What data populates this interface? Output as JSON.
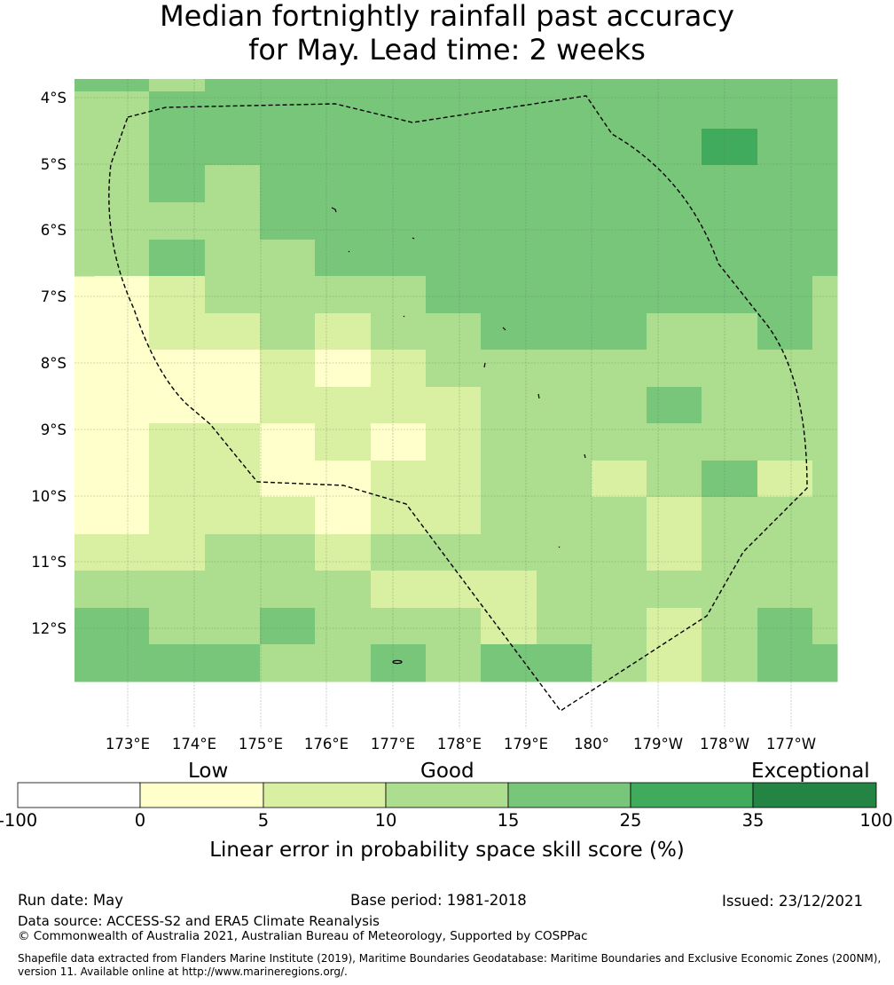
{
  "title": {
    "line1": "Median fortnightly rainfall past accuracy",
    "line2": "for May. Lead time: 2 weeks"
  },
  "map": {
    "lat_labels": [
      "4°S",
      "5°S",
      "6°S",
      "7°S",
      "8°S",
      "9°S",
      "10°S",
      "11°S",
      "12°S"
    ],
    "lon_labels": [
      "173°E",
      "174°E",
      "175°E",
      "176°E",
      "177°E",
      "178°E",
      "179°E",
      "180°",
      "179°W",
      "178°W",
      "177°W"
    ],
    "skill_grid": [
      [
        3,
        2,
        3,
        3,
        3,
        3,
        3,
        3,
        3,
        3,
        3,
        3,
        3,
        3
      ],
      [
        2,
        3,
        3,
        3,
        3,
        3,
        3,
        3,
        3,
        3,
        3,
        3,
        3,
        3
      ],
      [
        2,
        3,
        3,
        3,
        3,
        3,
        3,
        3,
        3,
        3,
        3,
        4,
        3,
        3
      ],
      [
        2,
        3,
        2,
        3,
        3,
        3,
        3,
        3,
        3,
        3,
        3,
        3,
        3,
        3
      ],
      [
        2,
        2,
        2,
        3,
        3,
        3,
        3,
        3,
        3,
        3,
        3,
        3,
        3,
        3
      ],
      [
        2,
        3,
        2,
        2,
        3,
        3,
        3,
        3,
        3,
        3,
        3,
        3,
        3,
        3
      ],
      [
        0,
        1,
        2,
        2,
        2,
        2,
        3,
        3,
        3,
        3,
        3,
        3,
        3,
        2
      ],
      [
        0,
        1,
        1,
        2,
        1,
        2,
        2,
        3,
        3,
        3,
        2,
        2,
        3,
        2
      ],
      [
        0,
        0,
        0,
        1,
        0,
        1,
        2,
        2,
        2,
        2,
        2,
        2,
        2,
        2
      ],
      [
        0,
        0,
        0,
        1,
        1,
        1,
        1,
        2,
        2,
        2,
        3,
        2,
        2,
        2
      ],
      [
        0,
        1,
        1,
        0,
        1,
        0,
        1,
        2,
        2,
        2,
        2,
        2,
        2,
        2
      ],
      [
        0,
        1,
        1,
        0,
        0,
        1,
        1,
        2,
        2,
        1,
        2,
        3,
        1,
        2
      ],
      [
        0,
        1,
        1,
        1,
        0,
        1,
        1,
        2,
        2,
        2,
        1,
        2,
        2,
        2
      ],
      [
        1,
        1,
        2,
        2,
        1,
        2,
        2,
        2,
        2,
        2,
        1,
        2,
        2,
        2
      ],
      [
        2,
        2,
        2,
        2,
        2,
        1,
        1,
        1,
        2,
        2,
        2,
        2,
        2,
        2
      ],
      [
        3,
        2,
        2,
        3,
        2,
        2,
        2,
        1,
        2,
        2,
        1,
        2,
        3,
        2
      ],
      [
        3,
        3,
        3,
        2,
        2,
        3,
        2,
        3,
        3,
        2,
        1,
        2,
        3,
        3
      ]
    ],
    "colors": [
      "#ffffcc",
      "#d9f0a3",
      "#addd8e",
      "#78c679",
      "#41ab5d",
      "#238443"
    ],
    "boundary_style": "dashed"
  },
  "colorbar": {
    "category_labels": [
      "Low",
      "Good",
      "Exceptional"
    ],
    "ticks": [
      "-100",
      "0",
      "5",
      "10",
      "15",
      "25",
      "35",
      "100"
    ],
    "colors": [
      "#ffffff",
      "#ffffcc",
      "#d9f0a3",
      "#addd8e",
      "#78c679",
      "#41ab5d",
      "#238443"
    ],
    "axis_label": "Linear error in probability space skill score (%)"
  },
  "footer": {
    "run_date": "Run date: May",
    "base_period": "Base period: 1981-2018",
    "issued": "Issued: 23/12/2021",
    "data_source": "Data source: ACCESS-S2 and ERA5 Climate Reanalysis",
    "copyright": "© Commonwealth of Australia 2021, Australian Bureau of Meteorology, Supported by COSPPac",
    "shapefile_line1": "Shapefile data extracted from Flanders Marine Institute (2019), Maritime Boundaries Geodatabase: Maritime Boundaries and Exclusive Economic Zones (200NM),",
    "shapefile_line2": "version 11. Available online at http://www.marineregions.org/."
  }
}
